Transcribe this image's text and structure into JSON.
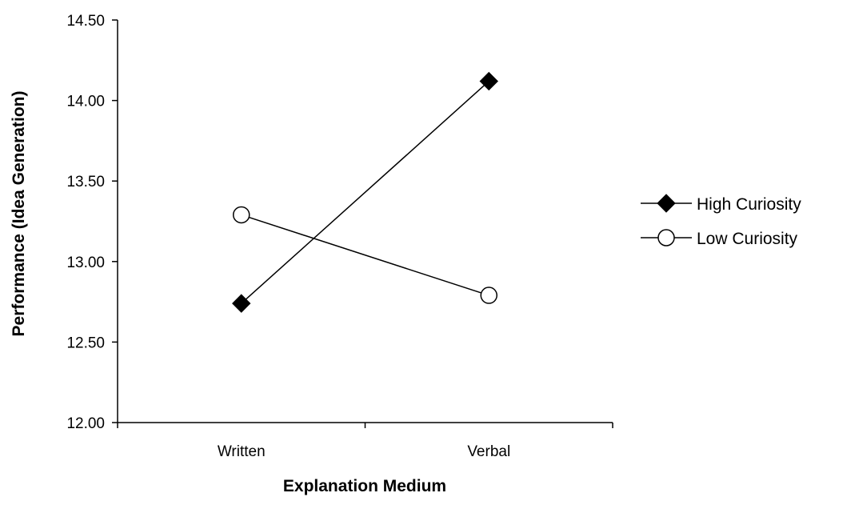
{
  "chart_data": {
    "type": "line",
    "title": "",
    "xlabel": "Explanation Medium",
    "ylabel": "Performance (Idea Generation)",
    "categories": [
      "Written",
      "Verbal"
    ],
    "ylim": [
      12.0,
      14.5
    ],
    "yticks": [
      "12.00",
      "12.50",
      "13.00",
      "13.50",
      "14.00",
      "14.50"
    ],
    "grid": false,
    "legend_position": "right",
    "series": [
      {
        "name": "High Curiosity",
        "marker": "filled-diamond",
        "color": "#000000",
        "values": [
          12.74,
          14.12
        ]
      },
      {
        "name": "Low Curiosity",
        "marker": "open-circle",
        "color": "#000000",
        "values": [
          13.29,
          12.79
        ]
      }
    ]
  }
}
